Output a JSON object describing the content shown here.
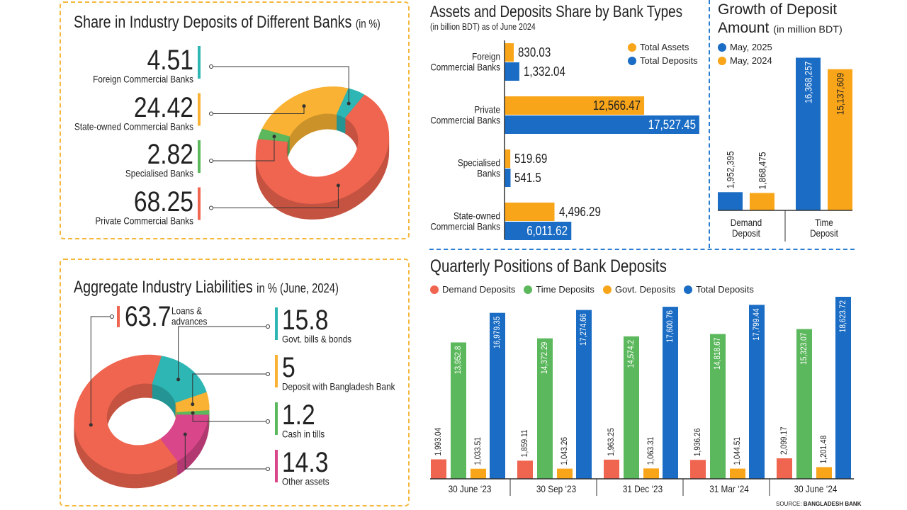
{
  "chart_data": [
    {
      "type": "donut",
      "title": "Share in Industry Deposits of Different Banks",
      "subtitle": "(in %)",
      "categories": [
        "Foreign Commercial Banks",
        "State-owned Commercial Banks",
        "Specialised Banks",
        "Private Commercial Banks"
      ],
      "values": [
        4.51,
        24.42,
        2.82,
        68.25
      ],
      "colors": [
        "#2db6b4",
        "#f9b233",
        "#5cb85c",
        "#f0654f"
      ]
    },
    {
      "type": "donut",
      "title": "Aggregate Industry Liabilities",
      "subtitle": "in % (June, 2024)",
      "categories": [
        "Loans &\nadvances",
        "Govt. bills & bonds",
        "Deposit with Bangladesh Bank",
        "Cash in tills",
        "Other assets"
      ],
      "values": [
        63.7,
        15.8,
        5,
        1.2,
        14.3
      ],
      "colors": [
        "#f0654f",
        "#2db6b4",
        "#f9b233",
        "#5cb85c",
        "#d9468a"
      ]
    },
    {
      "type": "hbar",
      "title": "Assets and Deposits Share by Bank Types",
      "subtitle": "(in billion BDT) as of June 2024",
      "categories": [
        "Foreign\nCommercial Banks",
        "Private\nCommercial Banks",
        "Specialised\nBanks",
        "State-owned\nCommercial Banks"
      ],
      "series": [
        {
          "name": "Total Assets",
          "color": "#f9a51a",
          "values": [
            830.03,
            12566.47,
            519.69,
            4496.29
          ],
          "value_labels": [
            "830.03",
            "12,566.47",
            "519.69",
            "4,496.29"
          ]
        },
        {
          "name": "Total Deposits",
          "color": "#1a6cc4",
          "values": [
            1332.04,
            17527.45,
            541.5,
            6011.62
          ],
          "value_labels": [
            "1,332.04",
            "17,527.45",
            "541.5",
            "6,011.62"
          ]
        }
      ],
      "xlim": [
        0,
        17600
      ],
      "legend": "top-right"
    },
    {
      "type": "bar",
      "title": "Growth of Deposit Amount",
      "subtitle": "(in million BDT)",
      "categories": [
        "Demand\nDeposit",
        "Time\nDeposit"
      ],
      "series": [
        {
          "name": "May, 2025",
          "color": "#1a6cc4",
          "values": [
            1952395,
            16368257
          ],
          "value_labels": [
            "1,952,395",
            "16,368,257"
          ]
        },
        {
          "name": "May, 2024",
          "color": "#f9a51a",
          "values": [
            1868475,
            15137609
          ],
          "value_labels": [
            "1,868,475",
            "15,137,609"
          ]
        }
      ],
      "ylim": [
        0,
        18000000
      ],
      "legend": "top-left"
    },
    {
      "type": "bar",
      "title": "Quarterly Positions of Bank Deposits",
      "categories": [
        "30 June ‘23",
        "30 Sep ‘23",
        "31 Dec ‘23",
        "31 Mar ‘24",
        "30 June ‘24"
      ],
      "series": [
        {
          "name": "Demand Deposits",
          "color": "#f0654f",
          "values": [
            1993.04,
            1859.11,
            1963.25,
            1936.26,
            2099.17
          ],
          "value_labels": [
            "1,993.04",
            "1,859.11",
            "1,963.25",
            "1,936.26",
            "2,099.17"
          ]
        },
        {
          "name": "Time Deposits",
          "color": "#5cb85c",
          "values": [
            13952.8,
            14372.29,
            14574.2,
            14818.67,
            15323.07
          ],
          "value_labels": [
            "13,952.8",
            "14,372.29",
            "14,574.2",
            "14,818.67",
            "15,323.07"
          ]
        },
        {
          "name": "Govt. Deposits",
          "color": "#f9a51a",
          "values": [
            1033.51,
            1043.26,
            1063.31,
            1044.51,
            1201.48
          ],
          "value_labels": [
            "1,033.51",
            "1,043.26",
            "1,063.31",
            "1,044.51",
            "1,201.48"
          ]
        },
        {
          "name": "Total Deposits",
          "color": "#1a6cc4",
          "values": [
            16979.35,
            17274.66,
            17600.76,
            17799.44,
            18623.72
          ],
          "value_labels": [
            "16,979.35",
            "17,274.66",
            "17,600.76",
            "17,799.44",
            "18,623.72"
          ]
        }
      ],
      "ylim": [
        0,
        20000
      ],
      "legend": "top"
    }
  ],
  "source": {
    "label": "SOURCE:",
    "name": "BANGLADESH BANK"
  }
}
